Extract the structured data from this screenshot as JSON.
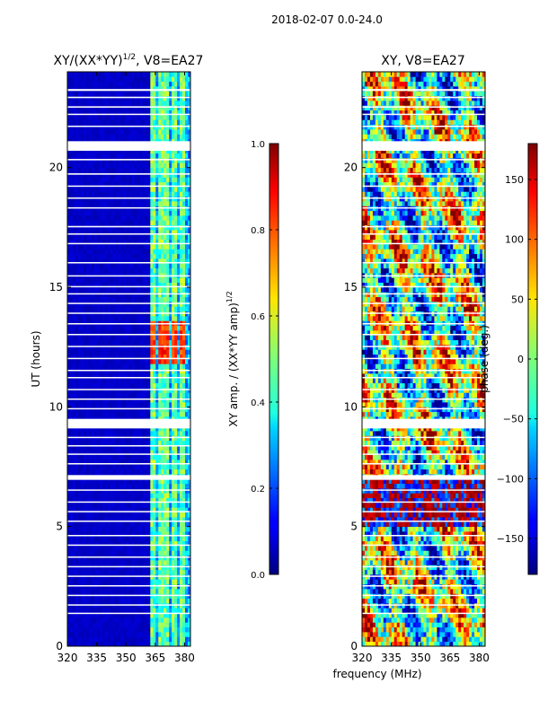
{
  "suptitle": "2018-02-07 0.0-24.0",
  "chart_data": [
    {
      "type": "heatmap",
      "title": "XY/(XX*YY)",
      "title_sup": "1/2",
      "title_suffix": ", V8=EA27",
      "xlabel": "",
      "ylabel": "UT (hours)",
      "xlim": [
        320,
        383
      ],
      "ylim": [
        0,
        24
      ],
      "xticks": [
        "320",
        "335",
        "350",
        "365",
        "380"
      ],
      "xtick_values": [
        320,
        335,
        350,
        365,
        380
      ],
      "yticks": [
        "0",
        "5",
        "10",
        "15",
        "20"
      ],
      "ytick_values": [
        0,
        5,
        10,
        15,
        20
      ],
      "colorbar": {
        "label": "XY amp. / (XX*YY amp)",
        "label_sup": "1/2",
        "range": [
          0.0,
          1.0
        ],
        "ticks": [
          "0.0",
          "0.2",
          "0.4",
          "0.6",
          "0.8",
          "1.0"
        ],
        "tick_values": [
          0.0,
          0.2,
          0.4,
          0.6,
          0.8,
          1.0
        ],
        "colormap": "jet"
      },
      "description_values": {
        "background_level": 0.05,
        "band_frequencies_mhz": [
          364,
          368,
          371,
          375,
          379
        ],
        "band_level": 0.35,
        "bright_patch_hours": [
          11.8,
          13.6
        ],
        "bright_patch_level": 0.75
      }
    },
    {
      "type": "heatmap",
      "title": "XY, V8=EA27",
      "xlabel": "frequency (MHz)",
      "ylabel": "",
      "xlim": [
        320,
        383
      ],
      "ylim": [
        0,
        24
      ],
      "xticks": [
        "320",
        "335",
        "350",
        "365",
        "380"
      ],
      "xtick_values": [
        320,
        335,
        350,
        365,
        380
      ],
      "yticks": [
        "0",
        "5",
        "10",
        "15",
        "20"
      ],
      "ytick_values": [
        0,
        5,
        10,
        15,
        20
      ],
      "colorbar": {
        "label": "phase (deg.)",
        "range": [
          -180,
          180
        ],
        "ticks": [
          "−150",
          "−100",
          "−50",
          "0",
          "50",
          "100",
          "150"
        ],
        "tick_values": [
          -150,
          -100,
          -50,
          0,
          50,
          100,
          150
        ],
        "colormap": "jet"
      }
    }
  ],
  "gap_hours": [
    [
      20.7,
      21.1
    ],
    [
      9.1,
      9.5
    ],
    [
      6.95,
      7.15
    ],
    [
      0.0,
      0.0
    ],
    [
      23.2,
      23.28
    ],
    [
      22.9,
      22.96
    ],
    [
      22.5,
      22.56
    ],
    [
      22.2,
      22.25
    ],
    [
      21.7,
      21.75
    ],
    [
      20.3,
      20.36
    ],
    [
      19.7,
      19.76
    ],
    [
      19.2,
      19.25
    ],
    [
      18.7,
      18.75
    ],
    [
      18.3,
      18.34
    ],
    [
      17.5,
      17.56
    ],
    [
      17.2,
      17.25
    ],
    [
      16.8,
      16.85
    ],
    [
      16.0,
      16.05
    ],
    [
      15.45,
      15.5
    ],
    [
      15.0,
      15.05
    ],
    [
      14.7,
      14.75
    ],
    [
      14.3,
      14.35
    ],
    [
      13.9,
      13.94
    ],
    [
      13.45,
      13.5
    ],
    [
      13.0,
      13.05
    ],
    [
      12.5,
      12.55
    ],
    [
      12.0,
      12.05
    ],
    [
      11.5,
      11.55
    ],
    [
      11.2,
      11.25
    ],
    [
      10.7,
      10.75
    ],
    [
      10.3,
      10.35
    ],
    [
      9.9,
      9.95
    ],
    [
      8.7,
      8.75
    ],
    [
      8.35,
      8.4
    ],
    [
      8.0,
      8.05
    ],
    [
      7.6,
      7.65
    ],
    [
      6.5,
      6.55
    ],
    [
      6.0,
      6.05
    ],
    [
      5.6,
      5.65
    ],
    [
      5.2,
      5.25
    ],
    [
      4.6,
      4.65
    ],
    [
      4.2,
      4.25
    ],
    [
      3.7,
      3.75
    ],
    [
      3.3,
      3.35
    ],
    [
      2.9,
      2.95
    ],
    [
      2.5,
      2.55
    ],
    [
      2.1,
      2.15
    ],
    [
      1.7,
      1.75
    ],
    [
      1.35,
      1.4
    ]
  ]
}
